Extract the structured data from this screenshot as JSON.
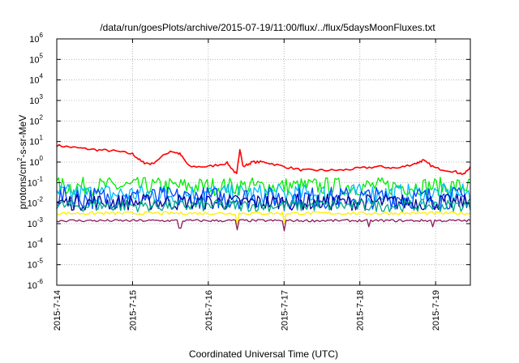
{
  "chart_data": {
    "type": "line",
    "title": "/data/run/goesPlots/archive/2015-07-19/11:00/flux/../flux/5daysMoonFluxes.txt",
    "xlabel": "Coordinated Universal Time (UTC)",
    "ylabel": {
      "prefix": "protons/cm",
      "superscript": "2",
      "suffix": "-s-sr-MeV"
    },
    "y_scale": "log",
    "ylim": [
      1e-06,
      1000000.0
    ],
    "y_ticks": [
      {
        "value": 1e-06,
        "base": "10",
        "exp": "-6"
      },
      {
        "value": 1e-05,
        "base": "10",
        "exp": "-5"
      },
      {
        "value": 0.0001,
        "base": "10",
        "exp": "-4"
      },
      {
        "value": 0.001,
        "base": "10",
        "exp": "-3"
      },
      {
        "value": 0.01,
        "base": "10",
        "exp": "-2"
      },
      {
        "value": 0.1,
        "base": "10",
        "exp": "-1"
      },
      {
        "value": 1.0,
        "base": "10",
        "exp": "0"
      },
      {
        "value": 10.0,
        "base": "10",
        "exp": "1"
      },
      {
        "value": 100.0,
        "base": "10",
        "exp": "2"
      },
      {
        "value": 1000.0,
        "base": "10",
        "exp": "3"
      },
      {
        "value": 10000.0,
        "base": "10",
        "exp": "4"
      },
      {
        "value": 100000.0,
        "base": "10",
        "exp": "5"
      },
      {
        "value": 1000000.0,
        "base": "10",
        "exp": "6"
      }
    ],
    "x_range": [
      "2015-07-14T00:00",
      "2015-07-19T11:00"
    ],
    "x_ticks": [
      {
        "value": "2015-07-14",
        "label": "2015-7-14"
      },
      {
        "value": "2015-07-15",
        "label": "2015-7-15"
      },
      {
        "value": "2015-07-16",
        "label": "2015-7-16"
      },
      {
        "value": "2015-07-17",
        "label": "2015-7-17"
      },
      {
        "value": "2015-07-18",
        "label": "2015-7-18"
      },
      {
        "value": "2015-07-19",
        "label": "2015-7-19"
      }
    ],
    "grid": true,
    "legend": "none",
    "series": [
      {
        "color": "#ff0000",
        "x": [
          "2015-07-14T00:00",
          "2015-07-14T06:00",
          "2015-07-14T12:00",
          "2015-07-14T18:00",
          "2015-07-15T00:00",
          "2015-07-15T03:00",
          "2015-07-15T06:00",
          "2015-07-15T12:00",
          "2015-07-15T15:00",
          "2015-07-15T18:00",
          "2015-07-16T00:00",
          "2015-07-16T06:00",
          "2015-07-16T09:00",
          "2015-07-16T10:00",
          "2015-07-16T11:00",
          "2015-07-16T14:00",
          "2015-07-16T18:00",
          "2015-07-17T00:00",
          "2015-07-17T06:00",
          "2015-07-17T12:00",
          "2015-07-17T18:00",
          "2015-07-18T00:00",
          "2015-07-18T06:00",
          "2015-07-18T12:00",
          "2015-07-18T18:00",
          "2015-07-18T20:00",
          "2015-07-19T00:00",
          "2015-07-19T06:00",
          "2015-07-19T09:00",
          "2015-07-19T11:00"
        ],
        "y": [
          6.5,
          5.0,
          4.0,
          3.5,
          2.5,
          1.0,
          0.8,
          3.5,
          2.5,
          0.6,
          0.6,
          0.9,
          0.25,
          4.5,
          0.6,
          1.0,
          1.0,
          0.6,
          0.4,
          0.4,
          0.4,
          0.5,
          0.6,
          0.5,
          0.9,
          1.2,
          0.5,
          0.35,
          0.25,
          0.6
        ]
      },
      {
        "color": "#00ee00",
        "base": 0.065,
        "jitter": 0.9,
        "dips": []
      },
      {
        "color": "#00bbff",
        "base": 0.028,
        "jitter": 1.0,
        "dips": []
      },
      {
        "color": "#0044ff",
        "base": 0.018,
        "jitter": 1.1,
        "dips": []
      },
      {
        "color": "#000099",
        "base": 0.011,
        "jitter": 0.8,
        "dips": []
      },
      {
        "color": "#00aa88",
        "base": 0.0075,
        "jitter": 0.6,
        "dips": []
      },
      {
        "color": "#ffee00",
        "base": 0.0032,
        "jitter": 0.15,
        "dips": [
          {
            "x": "2015-07-16T09:00",
            "y": 0.0009
          },
          {
            "x": "2015-07-17T00:00",
            "y": 0.0011
          }
        ]
      },
      {
        "color": "#8b1a5a",
        "base": 0.0014,
        "jitter": 0.12,
        "dips": [
          {
            "x": "2015-07-15T15:00",
            "y": 0.0006
          },
          {
            "x": "2015-07-16T09:00",
            "y": 0.0005
          },
          {
            "x": "2015-07-17T00:00",
            "y": 0.00045
          },
          {
            "x": "2015-07-18T03:00",
            "y": 0.0007
          },
          {
            "x": "2015-07-18T23:00",
            "y": 0.0007
          }
        ]
      }
    ]
  }
}
